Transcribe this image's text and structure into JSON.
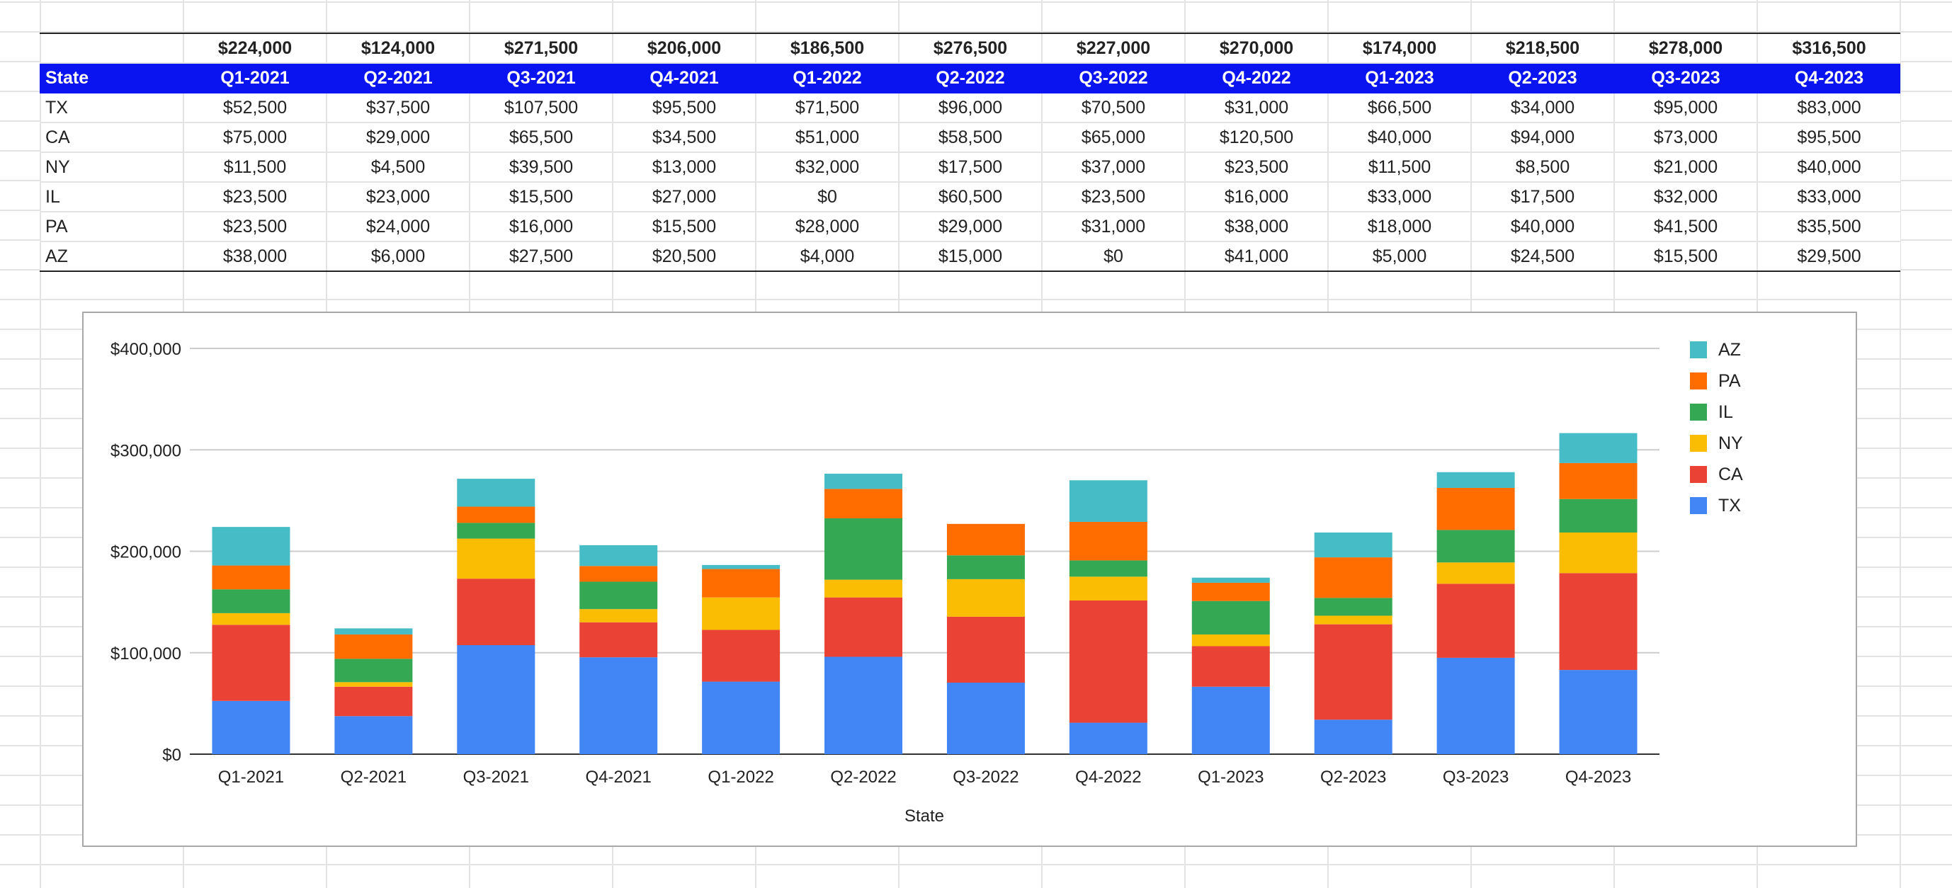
{
  "sheet": {
    "totals": [
      "$224,000",
      "$124,000",
      "$271,500",
      "$206,000",
      "$186,500",
      "$276,500",
      "$227,000",
      "$270,000",
      "$174,000",
      "$218,500",
      "$278,000",
      "$316,500"
    ],
    "header": {
      "state_label": "State",
      "quarters": [
        "Q1-2021",
        "Q2-2021",
        "Q3-2021",
        "Q4-2021",
        "Q1-2022",
        "Q2-2022",
        "Q3-2022",
        "Q4-2022",
        "Q1-2023",
        "Q2-2023",
        "Q3-2023",
        "Q4-2023"
      ]
    },
    "rows": [
      {
        "state": "TX",
        "values": [
          "$52,500",
          "$37,500",
          "$107,500",
          "$95,500",
          "$71,500",
          "$96,000",
          "$70,500",
          "$31,000",
          "$66,500",
          "$34,000",
          "$95,000",
          "$83,000"
        ]
      },
      {
        "state": "CA",
        "values": [
          "$75,000",
          "$29,000",
          "$65,500",
          "$34,500",
          "$51,000",
          "$58,500",
          "$65,000",
          "$120,500",
          "$40,000",
          "$94,000",
          "$73,000",
          "$95,500"
        ]
      },
      {
        "state": "NY",
        "values": [
          "$11,500",
          "$4,500",
          "$39,500",
          "$13,000",
          "$32,000",
          "$17,500",
          "$37,000",
          "$23,500",
          "$11,500",
          "$8,500",
          "$21,000",
          "$40,000"
        ]
      },
      {
        "state": "IL",
        "values": [
          "$23,500",
          "$23,000",
          "$15,500",
          "$27,000",
          "$0",
          "$60,500",
          "$23,500",
          "$16,000",
          "$33,000",
          "$17,500",
          "$32,000",
          "$33,000"
        ]
      },
      {
        "state": "PA",
        "values": [
          "$23,500",
          "$24,000",
          "$16,000",
          "$15,500",
          "$28,000",
          "$29,000",
          "$31,000",
          "$38,000",
          "$18,000",
          "$40,000",
          "$41,500",
          "$35,500"
        ]
      },
      {
        "state": "AZ",
        "values": [
          "$38,000",
          "$6,000",
          "$27,500",
          "$20,500",
          "$4,000",
          "$15,000",
          "$0",
          "$41,000",
          "$5,000",
          "$24,500",
          "$15,500",
          "$29,500"
        ]
      }
    ]
  },
  "chart_data": {
    "type": "bar",
    "stacked": true,
    "categories": [
      "Q1-2021",
      "Q2-2021",
      "Q3-2021",
      "Q4-2021",
      "Q1-2022",
      "Q2-2022",
      "Q3-2022",
      "Q4-2022",
      "Q1-2023",
      "Q2-2023",
      "Q3-2023",
      "Q4-2023"
    ],
    "series": [
      {
        "name": "TX",
        "color": "#4285f4",
        "values": [
          52500,
          37500,
          107500,
          95500,
          71500,
          96000,
          70500,
          31000,
          66500,
          34000,
          95000,
          83000
        ]
      },
      {
        "name": "CA",
        "color": "#ea4335",
        "values": [
          75000,
          29000,
          65500,
          34500,
          51000,
          58500,
          65000,
          120500,
          40000,
          94000,
          73000,
          95500
        ]
      },
      {
        "name": "NY",
        "color": "#fbbc04",
        "values": [
          11500,
          4500,
          39500,
          13000,
          32000,
          17500,
          37000,
          23500,
          11500,
          8500,
          21000,
          40000
        ]
      },
      {
        "name": "IL",
        "color": "#34a853",
        "values": [
          23500,
          23000,
          15500,
          27000,
          0,
          60500,
          23500,
          16000,
          33000,
          17500,
          32000,
          33000
        ]
      },
      {
        "name": "PA",
        "color": "#ff6d01",
        "values": [
          23500,
          24000,
          16000,
          15500,
          28000,
          29000,
          31000,
          38000,
          18000,
          40000,
          41500,
          35500
        ]
      },
      {
        "name": "AZ",
        "color": "#46bdc6",
        "values": [
          38000,
          6000,
          27500,
          20500,
          4000,
          15000,
          0,
          41000,
          5000,
          24500,
          15500,
          29500
        ]
      }
    ],
    "xlabel": "State",
    "ylabel": "",
    "ylim": [
      0,
      400000
    ],
    "yticks": [
      "$0",
      "$100,000",
      "$200,000",
      "$300,000",
      "$400,000"
    ],
    "legend_position": "right",
    "grid": true
  }
}
